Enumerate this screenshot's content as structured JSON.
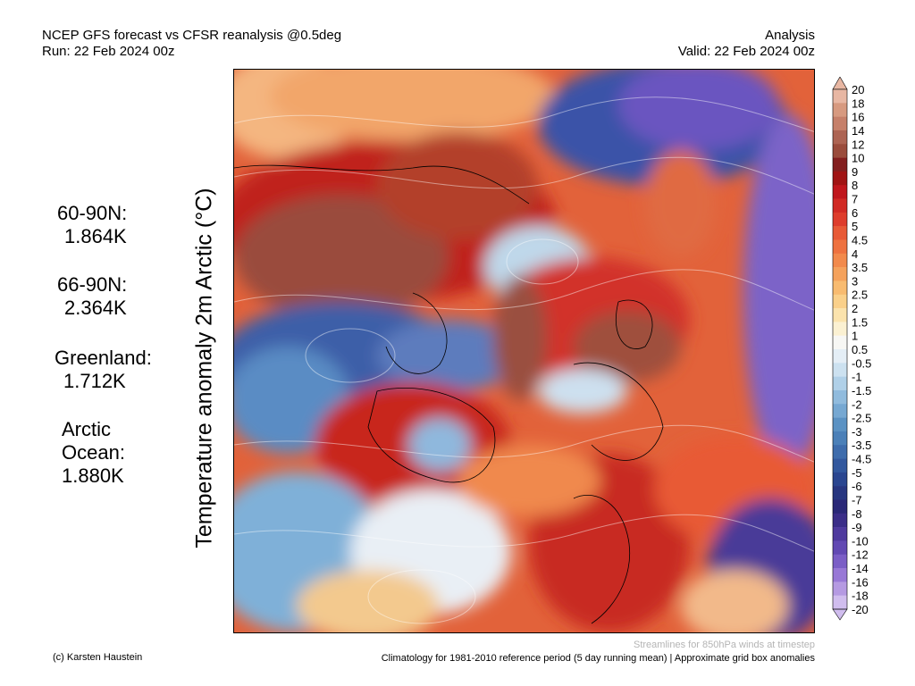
{
  "header": {
    "title_line1": "NCEP GFS forecast vs CFSR reanalysis @0.5deg",
    "title_line2": "Run: 22 Feb 2024 00z",
    "right_line1": "Analysis",
    "right_line2": "Valid: 22 Feb 2024 00z"
  },
  "side_title": "Temperature anomaly 2m Arctic (°C)",
  "stats": [
    {
      "label": "60-90N:",
      "value": "1.864K"
    },
    {
      "label": "66-90N:",
      "value": "2.364K"
    },
    {
      "label": "Greenland:",
      "value": "1.712K"
    },
    {
      "label": "Arctic",
      "label2": "Ocean:",
      "value": "1.880K"
    }
  ],
  "colorbar": {
    "labels": [
      "20",
      "18",
      "16",
      "14",
      "12",
      "10",
      "9",
      "8",
      "7",
      "6",
      "5",
      "4.5",
      "4",
      "3.5",
      "3",
      "2.5",
      "2",
      "1.5",
      "1",
      "0.5",
      "-0.5",
      "-1",
      "-1.5",
      "-2",
      "-2.5",
      "-3",
      "-3.5",
      "-4.5",
      "-5",
      "-6",
      "-7",
      "-8",
      "-9",
      "-10",
      "-12",
      "-14",
      "-16",
      "-18",
      "-20"
    ],
    "colors": [
      "#e8b7a3",
      "#d79a80",
      "#c6806a",
      "#ad6453",
      "#9a4c3c",
      "#831f1f",
      "#a01414",
      "#c0171d",
      "#d12a24",
      "#de3d2c",
      "#e85a36",
      "#ee7240",
      "#f28a4c",
      "#f5a25c",
      "#f8bb70",
      "#fad08a",
      "#fbe3ad",
      "#fbf1d2",
      "#f7f7f4",
      "#e4eef6",
      "#cce1f0",
      "#b0d0e8",
      "#90bbdd",
      "#76a8d2",
      "#5b92c3",
      "#4b80b8",
      "#3e6cac",
      "#32589e",
      "#2a4690",
      "#273680",
      "#2a2877",
      "#3b2e88",
      "#4f3a9e",
      "#6249b3",
      "#7b5ec6",
      "#9878d6",
      "#b59ae2",
      "#d0bdee"
    ]
  },
  "footer": {
    "streamlines_note": "Streamlines for 850hPa winds at timestep",
    "credit": "(c) Karsten Haustein",
    "climatology": "Climatology for 1981-2010 reference period (5 day running mean) | Approximate grid box anomalies"
  }
}
